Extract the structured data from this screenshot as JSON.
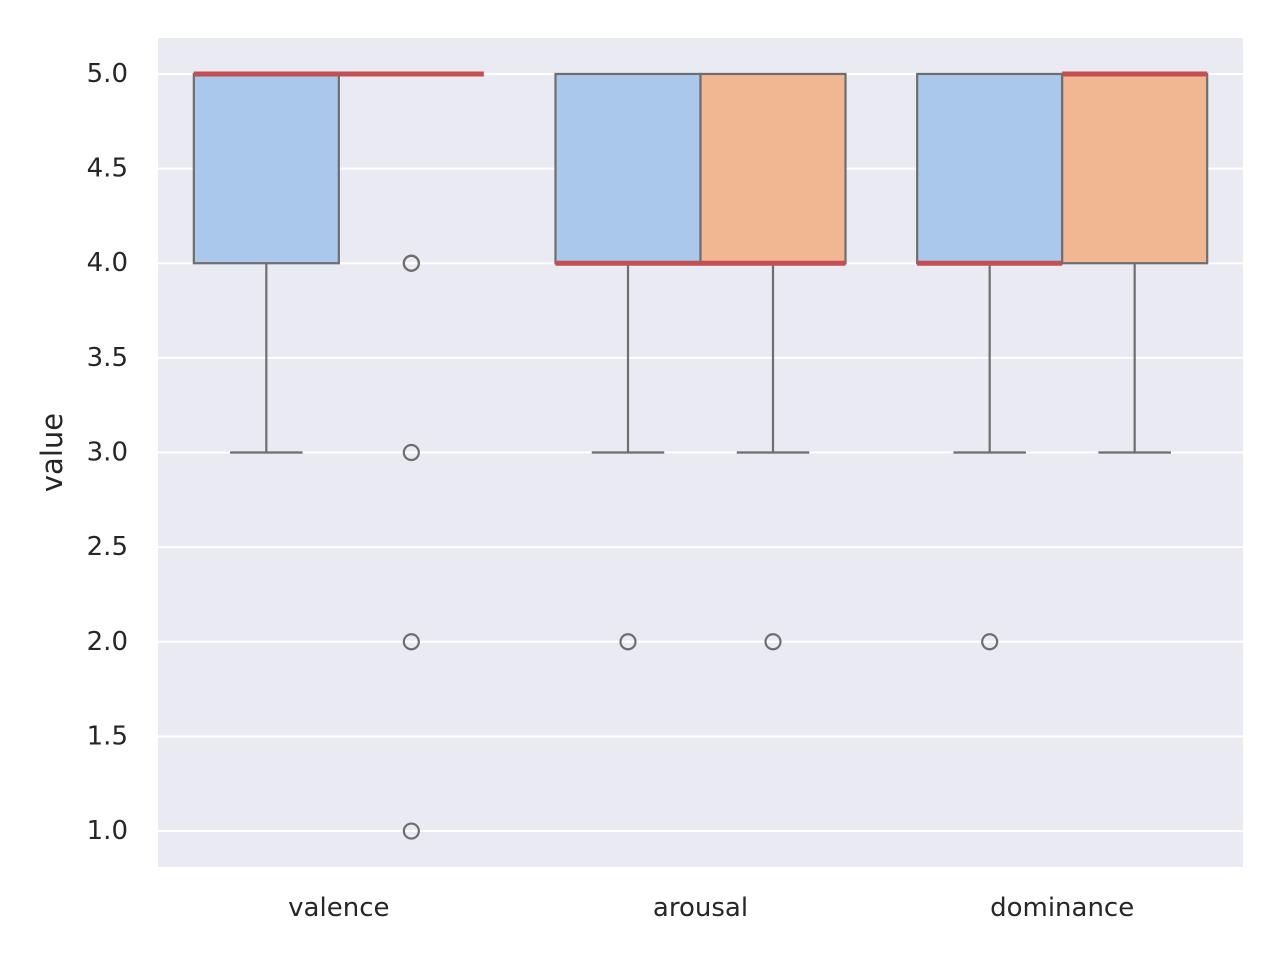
{
  "chart_data": {
    "type": "box",
    "ylabel": "value",
    "xlabel": "",
    "ylim": [
      0.81,
      5.19
    ],
    "yticks": [
      1.0,
      1.5,
      2.0,
      2.5,
      3.0,
      3.5,
      4.0,
      4.5,
      5.0
    ],
    "grid": true,
    "categories": [
      "valence",
      "arousal",
      "dominance"
    ],
    "series": [
      {
        "color": "#a9c8ec",
        "boxes": [
          {
            "q1": 4.0,
            "median": 5.0,
            "q3": 5.0,
            "whisker_low": 3.0,
            "whisker_high": 5.0,
            "outliers": []
          },
          {
            "q1": 4.0,
            "median": 4.0,
            "q3": 5.0,
            "whisker_low": 3.0,
            "whisker_high": 5.0,
            "outliers": [
              2.0
            ]
          },
          {
            "q1": 4.0,
            "median": 4.0,
            "q3": 5.0,
            "whisker_low": 3.0,
            "whisker_high": 5.0,
            "outliers": [
              2.0
            ]
          }
        ]
      },
      {
        "color": "#f1b792",
        "boxes": [
          {
            "q1": 5.0,
            "median": 5.0,
            "q3": 5.0,
            "whisker_low": 5.0,
            "whisker_high": 5.0,
            "outliers": [
              4.0,
              4.0,
              3.0,
              2.0,
              1.0
            ]
          },
          {
            "q1": 4.0,
            "median": 4.0,
            "q3": 5.0,
            "whisker_low": 3.0,
            "whisker_high": 5.0,
            "outliers": [
              2.0
            ]
          },
          {
            "q1": 4.0,
            "median": 5.0,
            "q3": 5.0,
            "whisker_low": 3.0,
            "whisker_high": 5.0,
            "outliers": []
          }
        ]
      }
    ],
    "median_color": "#c44e52",
    "box_edge_color": "#6e6e6e",
    "plot_background": "#eaeaf2",
    "grid_color": "#ffffff"
  }
}
